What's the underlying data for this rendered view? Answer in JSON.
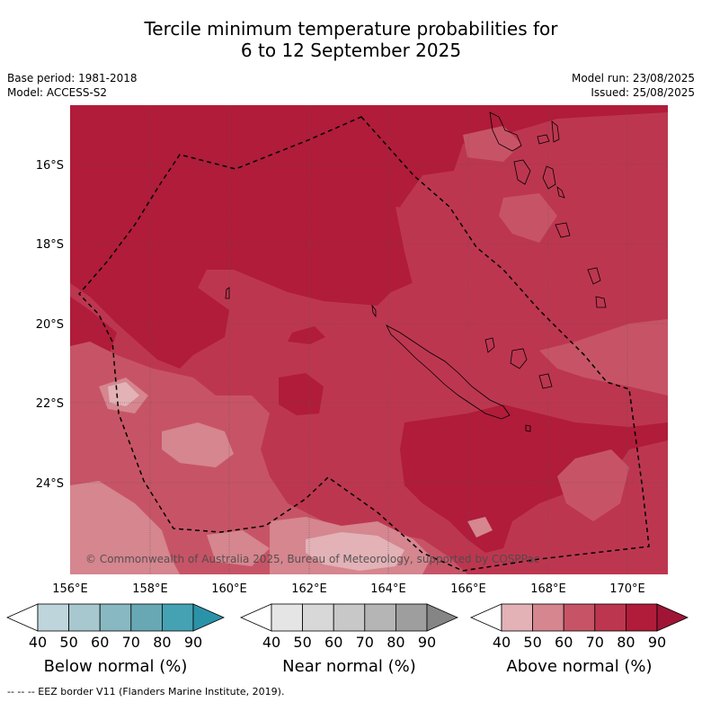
{
  "header": {
    "title_line1": "Tercile minimum temperature probabilities for",
    "title_line2": "6 to 12 September 2025",
    "base_period": "Base period: 1981-2018",
    "model": "Model: ACCESS-S2",
    "model_run": "Model run: 23/08/2025",
    "issued": "Issued: 25/08/2025"
  },
  "map": {
    "lat_labels": [
      "16°S",
      "18°S",
      "20°S",
      "22°S",
      "24°S"
    ],
    "lon_labels": [
      "156°E",
      "158°E",
      "160°E",
      "162°E",
      "164°E",
      "166°E",
      "168°E",
      "170°E"
    ],
    "copyright": "© Commonwealth of Australia 2025, Bureau of Meteorology, supported by COSPPac",
    "dominant_category": "Above normal",
    "colors": {
      "above_90": "#b01c3a",
      "above_80": "#bd3650",
      "above_70": "#c75466",
      "above_60": "#d5868f",
      "above_50": "#e2b2b7"
    }
  },
  "colorbars": [
    {
      "label": "Below normal (%)",
      "ticks": [
        "40",
        "50",
        "60",
        "70",
        "80",
        "90"
      ],
      "colors": [
        "#ffffff",
        "#bfd5dc",
        "#a6c8ce",
        "#88b8c1",
        "#68a8b4",
        "#45a2b3",
        "#2b93a8"
      ]
    },
    {
      "label": "Near normal (%)",
      "ticks": [
        "40",
        "50",
        "60",
        "70",
        "80",
        "90"
      ],
      "colors": [
        "#ffffff",
        "#e5e5e5",
        "#d8d8d8",
        "#c8c8c8",
        "#b5b5b5",
        "#9e9e9e",
        "#858585"
      ]
    },
    {
      "label": "Above normal (%)",
      "ticks": [
        "40",
        "50",
        "60",
        "70",
        "80",
        "90"
      ],
      "colors": [
        "#ffffff",
        "#e2b2b7",
        "#d5868f",
        "#c75466",
        "#bd3650",
        "#b01c3a",
        "#a01535"
      ]
    }
  ],
  "footnote": "--  --  -- EEZ border V11 (Flanders Marine Institute, 2019)."
}
